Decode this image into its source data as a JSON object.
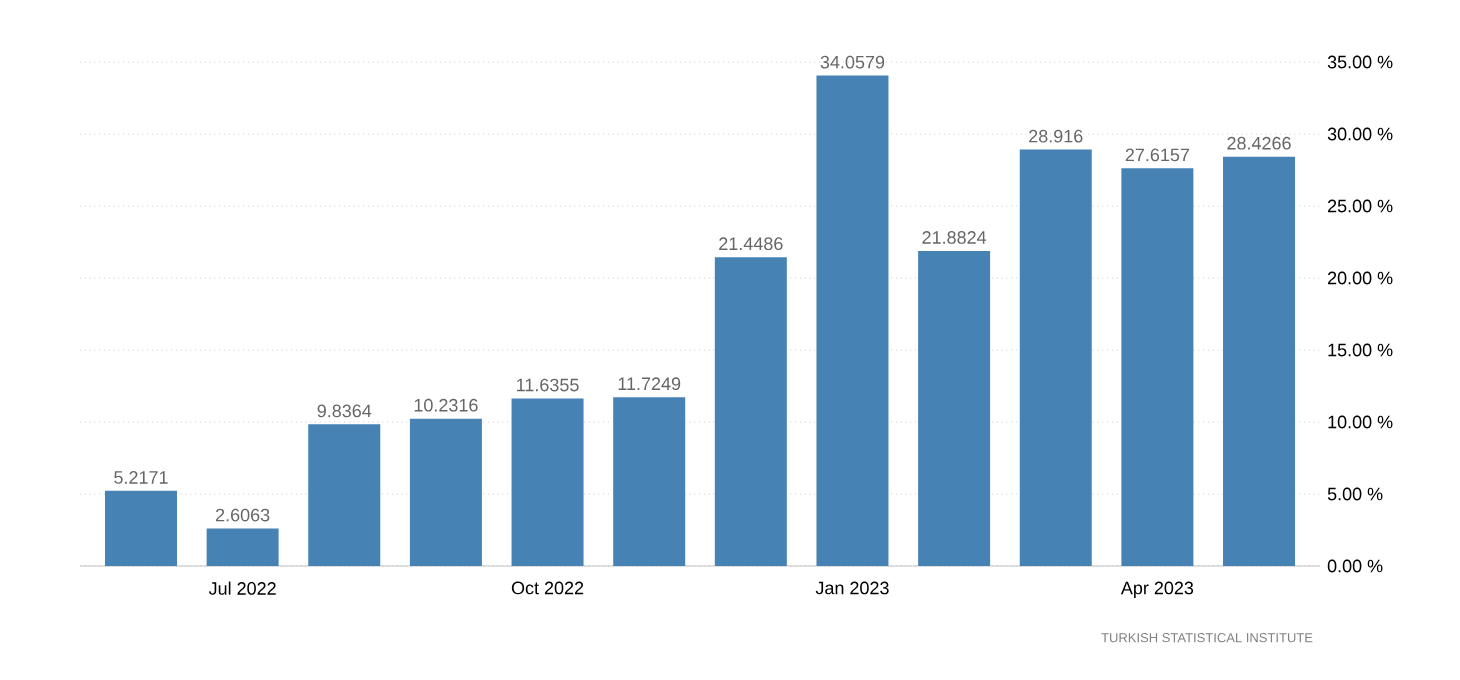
{
  "chart_data": {
    "type": "bar",
    "categories": [
      null,
      "Jul 2022",
      null,
      null,
      "Oct 2022",
      null,
      null,
      "Jan 2023",
      null,
      null,
      "Apr 2023",
      null
    ],
    "values": [
      5.2171,
      2.6063,
      9.8364,
      10.2316,
      11.6355,
      11.7249,
      21.4486,
      34.0579,
      21.8824,
      28.916,
      27.6157,
      28.4266
    ],
    "color": "#4682b4",
    "data_labels": true,
    "grid": "y",
    "ylim": [
      0,
      35
    ],
    "yticks": [
      {
        "value": 0,
        "label": "0.00 %"
      },
      {
        "value": 5,
        "label": "5.00 %"
      },
      {
        "value": 10,
        "label": "10.00 %"
      },
      {
        "value": 15,
        "label": "15.00 %"
      },
      {
        "value": 20,
        "label": "20.00 %"
      },
      {
        "value": 25,
        "label": "25.00 %"
      },
      {
        "value": 30,
        "label": "30.00 %"
      },
      {
        "value": 35,
        "label": "35.00 %"
      }
    ],
    "annotations": [
      "TURKISH STATISTICAL INSTITUTE"
    ]
  }
}
